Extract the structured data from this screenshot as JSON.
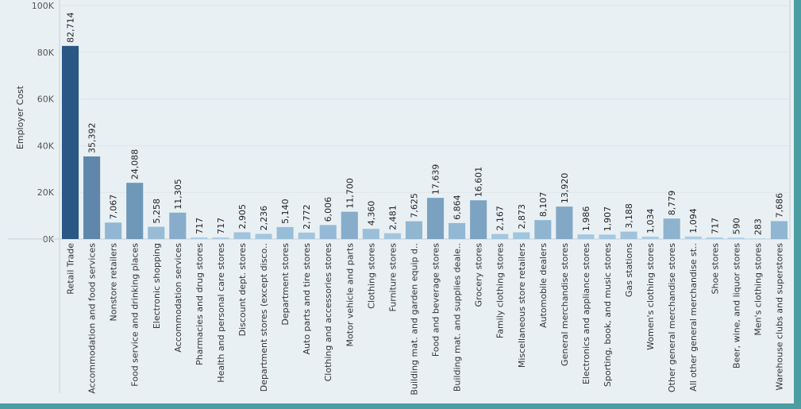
{
  "chart_data": {
    "type": "bar",
    "ylabel": "Employer Cost",
    "xlabel": "",
    "title": "",
    "ylim": [
      0,
      100000
    ],
    "yticks": [
      {
        "value": 0,
        "label": "0K"
      },
      {
        "value": 20000,
        "label": "20K"
      },
      {
        "value": 40000,
        "label": "40K"
      },
      {
        "value": 60000,
        "label": "60K"
      },
      {
        "value": 80000,
        "label": "80K"
      },
      {
        "value": 100000,
        "label": "100K"
      }
    ],
    "grid": true,
    "color_scale": {
      "low": "#b7d9ee",
      "high": "#2a5783"
    },
    "categories": [
      "Retail Trade",
      "Accommodation and food services",
      "Nonstore retailers",
      "Food service and drinking places",
      "Electronic shopping",
      "Accommodation services",
      "Pharmacies and drug stores",
      "Health and personal care stores",
      "Discount dept. stores",
      "Department stores (except disco..",
      "Department stores",
      "Auto parts and tire stores",
      "Clothing and accessories stores",
      "Motor vehicle and parts",
      "Clothing stores",
      "Furniture stores",
      "Building mat. and garden equip d..",
      "Food and beverage stores",
      "Building mat. and supplies deale..",
      "Grocery stores",
      "Family clothing stores",
      "Miscellaneous store retailers",
      "Automobile dealers",
      "General merchandise stores",
      "Electronics and appliance stores",
      "Sporting, book, and  music stores",
      "Gas stations",
      "Women's clothing stores",
      "Other general merchandise stores",
      "All other general merchandise st..",
      "Shoe stores",
      "Beer, wine, and liquor stores",
      "Men's clothing stores",
      "Warehouse clubs and superstores"
    ],
    "values": [
      82714,
      35392,
      7067,
      24088,
      5258,
      11305,
      717,
      717,
      2905,
      2236,
      5140,
      2772,
      6006,
      11700,
      4360,
      2481,
      7625,
      17639,
      6864,
      16601,
      2167,
      2873,
      8107,
      13920,
      1986,
      1907,
      3188,
      1034,
      8779,
      1094,
      717,
      590,
      283,
      7686
    ],
    "data_labels": [
      "82,714",
      "35,392",
      "7,067",
      "24,088",
      "5,258",
      "11,305",
      "717",
      "717",
      "2,905",
      "2,236",
      "5,140",
      "2,772",
      "6,006",
      "11,700",
      "4,360",
      "2,481",
      "7,625",
      "17,639",
      "6,864",
      "16,601",
      "2,167",
      "2,873",
      "8,107",
      "13,920",
      "1,986",
      "1,907",
      "3,188",
      "1,034",
      "8,779",
      "1,094",
      "717",
      "590",
      "283",
      "7,686"
    ]
  }
}
